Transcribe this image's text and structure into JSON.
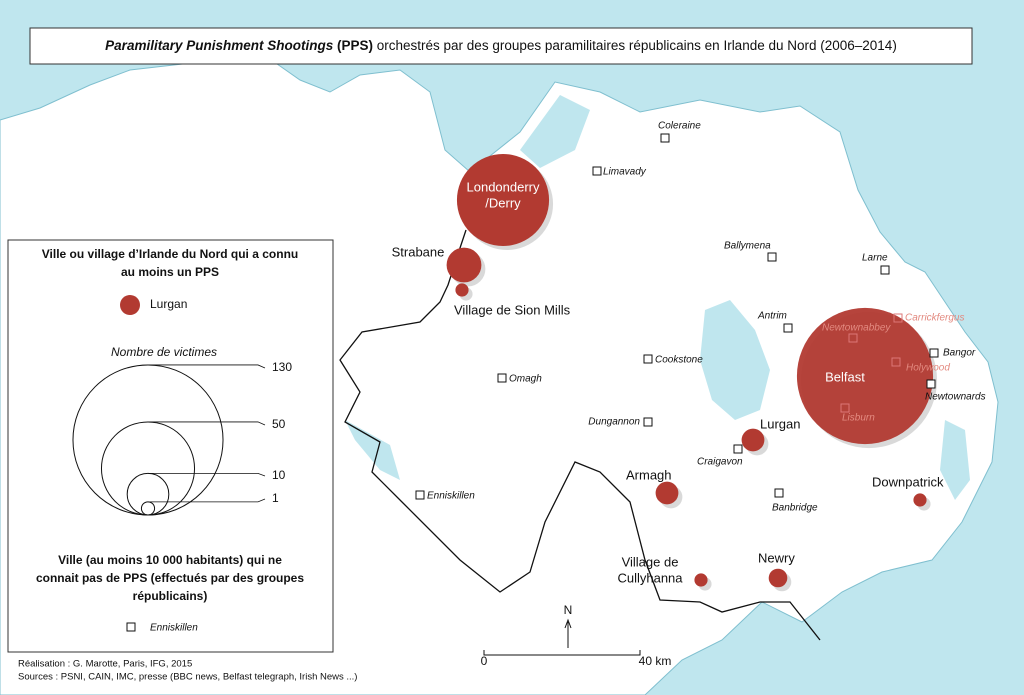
{
  "title": {
    "italic": "Paramilitary Punishment Shootings",
    "bold": "(PPS)",
    "rest": "orchestrés par des groupes paramilitaires républicains en Irlande du Nord (2006–2014)"
  },
  "legend": {
    "pps_heading": [
      "Ville ou village d’Irlande du Nord qui a connu",
      "au moins un PPS"
    ],
    "pps_example": "Lurgan",
    "scale_title": "Nombre de victimes",
    "victim_scale": [
      130,
      50,
      10,
      1
    ],
    "nopps_heading": [
      "Ville (au moins 10 000 habitants) qui ne",
      "connait pas de PPS (effectués par des groupes",
      "républicains)"
    ],
    "nopps_example": "Enniskillen"
  },
  "towns_pps": [
    {
      "name": [
        "Londonderry",
        "/Derry"
      ],
      "victims": 49
    },
    {
      "name": [
        "Strabane"
      ],
      "victims": 7
    },
    {
      "name": [
        "Village de Sion Mills"
      ],
      "victims": 1
    },
    {
      "name": [
        "Lurgan"
      ],
      "victims": 3
    },
    {
      "name": [
        "Belfast"
      ],
      "victims": 107
    },
    {
      "name": [
        "Armagh"
      ],
      "victims": 3
    },
    {
      "name": [
        "Downpatrick"
      ],
      "victims": 1
    },
    {
      "name": [
        "Village de",
        "Cullyhanna"
      ],
      "victims": 1
    },
    {
      "name": [
        "Newry"
      ],
      "victims": 2
    }
  ],
  "towns_no_pps": [
    "Coleraine",
    "Limavady",
    "Ballymena",
    "Larne",
    "Antrim",
    "Carrickfergus",
    "Newtownabbey",
    "Bangor",
    "Holywood",
    "Newtownards",
    "Lisburn",
    "Cookstone",
    "Omagh",
    "Dungannon",
    "Craigavon",
    "Banbridge",
    "Enniskillen"
  ],
  "scale_bar": {
    "start": "0",
    "end": "40 km"
  },
  "north": "N",
  "credits": [
    "Réalisation : G. Marotte, Paris, IFG, 2015",
    "Sources : PSNI, CAIN,  IMC, presse (BBC news, Belfast telegraph, Irish News ...)"
  ]
}
